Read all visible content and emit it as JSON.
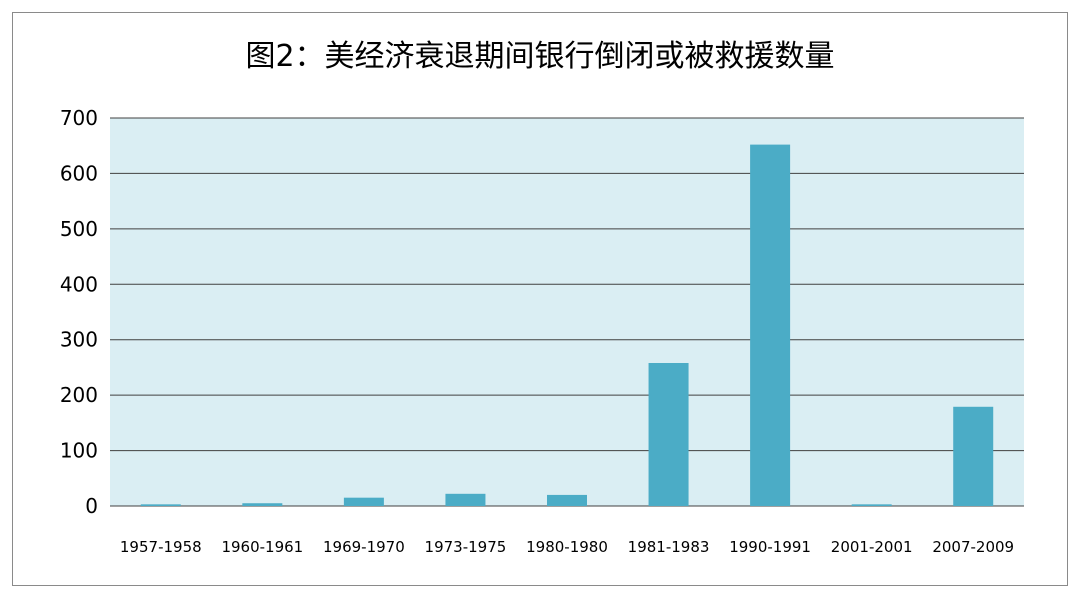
{
  "chart_data": {
    "type": "bar",
    "title": "图2：美经济衰退期间银行倒闭或被救援数量",
    "xlabel": "",
    "ylabel": "",
    "categories": [
      "1957-1958",
      "1960-1961",
      "1969-1970",
      "1973-1975",
      "1980-1980",
      "1981-1983",
      "1990-1991",
      "2001-2001",
      "2007-2009"
    ],
    "values": [
      3,
      5,
      15,
      22,
      20,
      258,
      652,
      3,
      179
    ],
    "ylim": [
      0,
      700
    ],
    "yticks": [
      0,
      100,
      200,
      300,
      400,
      500,
      600,
      700
    ],
    "grid": true,
    "legend": "none",
    "colors": {
      "bar": "#4BACC6",
      "plot_background": "#DAEEF3",
      "gridline": "#404040",
      "axis_text": "#000000"
    }
  }
}
